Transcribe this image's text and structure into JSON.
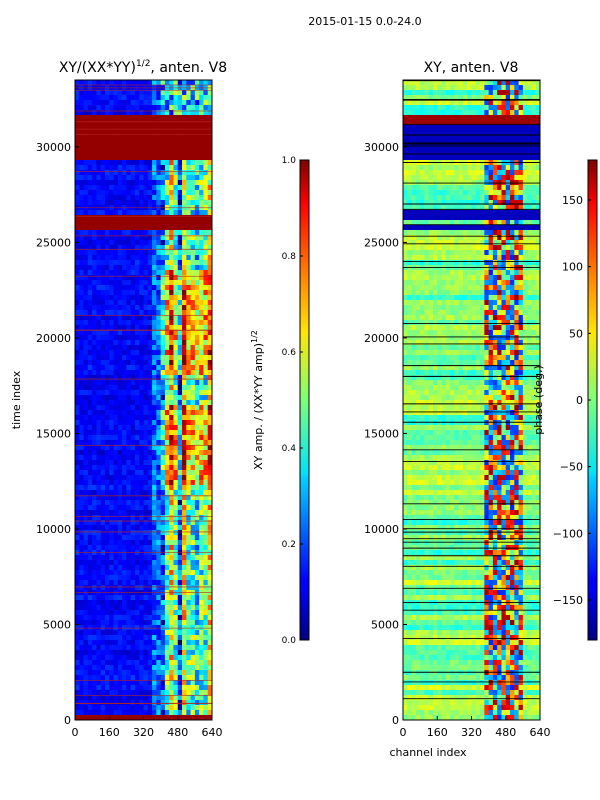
{
  "figure": {
    "suptitle": "2015-01-15 0.0-24.0"
  },
  "chart_data": [
    {
      "type": "heatmap",
      "title_main": "XY/(XX*YY)",
      "title_sup": "1/2",
      "title_tail": ", anten. V8",
      "ylabel": "time index",
      "xlabel": "",
      "xticks": [
        0,
        160,
        320,
        480,
        640
      ],
      "yticks": [
        0,
        5000,
        10000,
        15000,
        20000,
        25000,
        30000
      ],
      "xlim": [
        0,
        640
      ],
      "ylim": [
        0,
        33500
      ],
      "colorbar": {
        "label_main": "XY amp. / (XX*YY amp)",
        "label_sup": "1/2",
        "ticks": [
          "0.0",
          "0.2",
          "0.4",
          "0.6",
          "0.8",
          "1.0"
        ],
        "range": [
          0,
          1
        ],
        "colormap": "jet"
      },
      "features": {
        "saturated_time_bands": [
          [
            29300,
            31600
          ],
          [
            26000,
            26500
          ],
          [
            25700,
            25900
          ],
          [
            0,
            200
          ]
        ],
        "high_channel_range": [
          400,
          640
        ],
        "bright_time_ranges": [
          [
            12300,
            16500
          ],
          [
            18000,
            23500
          ]
        ]
      }
    },
    {
      "type": "heatmap",
      "title_main": "XY, anten. V8",
      "ylabel": "",
      "xlabel": "channel index",
      "xticks": [
        0,
        160,
        320,
        480,
        640
      ],
      "yticks": [
        0,
        5000,
        10000,
        15000,
        20000,
        25000,
        30000
      ],
      "xlim": [
        0,
        640
      ],
      "ylim": [
        0,
        33500
      ],
      "colorbar": {
        "label": "phase (deg.)",
        "ticks": [
          "150",
          "100",
          "50",
          "0",
          "−50",
          "−100",
          "−150"
        ],
        "tick_values": [
          150,
          100,
          50,
          0,
          -50,
          -100,
          -150
        ],
        "range": [
          -180,
          180
        ],
        "colormap": "jet"
      },
      "features": {
        "low_phase_bands": [
          [
            29300,
            31200
          ],
          [
            26200,
            26600
          ],
          [
            25600,
            25900
          ]
        ],
        "high_phase_band": [
          31200,
          31600
        ],
        "structured_channel_range": [
          380,
          560
        ]
      }
    }
  ]
}
